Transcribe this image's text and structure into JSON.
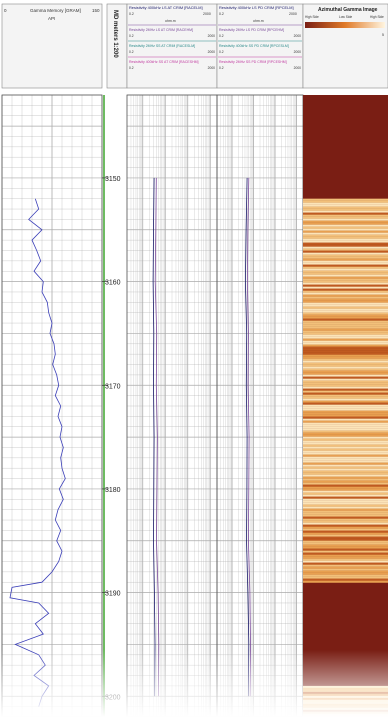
{
  "chart_data": {
    "type": "line",
    "title": "",
    "depth_track": {
      "label": "MD meters 1:200",
      "ticks": [
        3150,
        3160,
        3170,
        3180,
        3190,
        3200
      ],
      "ylim": [
        3142,
        3202
      ]
    },
    "tracks": [
      {
        "id": "gr",
        "header": "Gamma Memory [GRAM]",
        "unit": "API",
        "range": [
          "0",
          "150"
        ],
        "xlim": [
          0,
          150
        ],
        "series": [
          {
            "name": "Gamma Memory",
            "color": "#3b3fb8",
            "points": [
              [
                3152,
                50
              ],
              [
                3153,
                55
              ],
              [
                3154,
                40
              ],
              [
                3155,
                60
              ],
              [
                3156,
                45
              ],
              [
                3157,
                52
              ],
              [
                3158,
                58
              ],
              [
                3159,
                48
              ],
              [
                3160,
                62
              ],
              [
                3161,
                60
              ],
              [
                3162,
                68
              ],
              [
                3163,
                70
              ],
              [
                3164,
                75
              ],
              [
                3165,
                72
              ],
              [
                3166,
                78
              ],
              [
                3167,
                80
              ],
              [
                3168,
                76
              ],
              [
                3169,
                82
              ],
              [
                3170,
                85
              ],
              [
                3171,
                80
              ],
              [
                3172,
                88
              ],
              [
                3173,
                84
              ],
              [
                3174,
                90
              ],
              [
                3175,
                87
              ],
              [
                3176,
                92
              ],
              [
                3177,
                88
              ],
              [
                3178,
                90
              ],
              [
                3179,
                95
              ],
              [
                3180,
                86
              ],
              [
                3181,
                92
              ],
              [
                3182,
                84
              ],
              [
                3183,
                80
              ],
              [
                3184,
                88
              ],
              [
                3185,
                82
              ],
              [
                3186,
                90
              ],
              [
                3187,
                85
              ],
              [
                3188,
                75
              ],
              [
                3189,
                60
              ],
              [
                3189.5,
                15
              ],
              [
                3190.5,
                12
              ],
              [
                3191,
                55
              ],
              [
                3192,
                70
              ],
              [
                3193,
                50
              ],
              [
                3194,
                62
              ],
              [
                3195,
                20
              ],
              [
                3196,
                55
              ],
              [
                3197,
                65
              ],
              [
                3198,
                48
              ],
              [
                3199,
                70
              ],
              [
                3200,
                60
              ],
              [
                3201,
                55
              ]
            ]
          }
        ]
      },
      {
        "id": "att",
        "header": "Resistivity 400kHz LS AT CRIM [RACELM]",
        "unit": "ohm.m",
        "range": [
          "0.2",
          "2000"
        ],
        "xlim": [
          0.2,
          2000
        ],
        "log_scale": true,
        "subheaders": [
          {
            "label": "Resistivity 2MHz LS AT CRIM [RACEHM]",
            "range": [
              "0.2",
              "2000"
            ],
            "color": "#7a4a9a"
          },
          {
            "label": "Resistivity 2MHz SS AT CRIM [RACESLM]",
            "range": [
              "0.2",
              "2000"
            ],
            "color": "#2a8a8a"
          },
          {
            "label": "Resistivity 400kHz SS AT CRIM [RACESHM]",
            "range": [
              "0.2",
              "2000"
            ],
            "color": "#c03aa0"
          }
        ],
        "series": [
          {
            "name": "RACELM",
            "color": "#1a1a6a",
            "points": [
              [
                3150,
                3.2
              ],
              [
                3155,
                3.0
              ],
              [
                3160,
                2.9
              ],
              [
                3165,
                3.1
              ],
              [
                3170,
                3.0
              ],
              [
                3175,
                3.2
              ],
              [
                3180,
                3.1
              ],
              [
                3185,
                3.0
              ],
              [
                3190,
                3.3
              ],
              [
                3195,
                3.5
              ],
              [
                3200,
                3.4
              ]
            ]
          },
          {
            "name": "RACEHM",
            "color": "#7a4a9a",
            "points": [
              [
                3150,
                4.0
              ],
              [
                3155,
                3.8
              ],
              [
                3160,
                3.6
              ],
              [
                3165,
                4.2
              ],
              [
                3170,
                4.0
              ],
              [
                3175,
                4.5
              ],
              [
                3180,
                4.3
              ],
              [
                3185,
                4.1
              ],
              [
                3190,
                4.8
              ],
              [
                3195,
                5.2
              ],
              [
                3200,
                5.0
              ]
            ]
          }
        ]
      },
      {
        "id": "pd",
        "header": "Resistivity 400kHz LS PD CRIM [RPCELM]",
        "unit": "ohm.m",
        "range": [
          "0.2",
          "2000"
        ],
        "xlim": [
          0.2,
          2000
        ],
        "log_scale": true,
        "subheaders": [
          {
            "label": "Resistivity 2MHz LS PD CRIM [RPCEHM]",
            "range": [
              "0.2",
              "2000"
            ],
            "color": "#7a4a9a"
          },
          {
            "label": "Resistivity 400kHz SS PD CRIM [RPCESLM]",
            "range": [
              "0.2",
              "2000"
            ],
            "color": "#2a8a8a"
          },
          {
            "label": "Resistivity 2MHz SS PD CRIM [RPCESHM]",
            "range": [
              "0.2",
              "2000"
            ],
            "color": "#c03aa0"
          }
        ],
        "series": [
          {
            "name": "RPCELM",
            "color": "#1a1a6a",
            "points": [
              [
                3150,
                5.0
              ],
              [
                3155,
                4.5
              ],
              [
                3160,
                4.2
              ],
              [
                3165,
                4.8
              ],
              [
                3170,
                4.6
              ],
              [
                3175,
                5.0
              ],
              [
                3180,
                4.9
              ],
              [
                3185,
                4.7
              ],
              [
                3190,
                5.5
              ],
              [
                3195,
                6.0
              ],
              [
                3200,
                5.8
              ]
            ]
          },
          {
            "name": "RPCEHM",
            "color": "#7a4a9a",
            "points": [
              [
                3150,
                6.0
              ],
              [
                3155,
                5.5
              ],
              [
                3160,
                5.2
              ],
              [
                3165,
                5.8
              ],
              [
                3170,
                5.6
              ],
              [
                3175,
                6.2
              ],
              [
                3180,
                6.0
              ],
              [
                3185,
                5.8
              ],
              [
                3190,
                6.8
              ],
              [
                3195,
                7.2
              ],
              [
                3200,
                7.0
              ]
            ]
          }
        ]
      },
      {
        "id": "img",
        "header": "Azimuthal Gamma Image",
        "legend_labels": [
          "High Side",
          "Low Side",
          "High Side"
        ],
        "scale_max": "5"
      }
    ]
  },
  "colors": {
    "grid": "#aaaaaa",
    "header_bg": "#f4f4f4",
    "gamma": "#3b3fb8",
    "image_dark": "#7a1e14",
    "image_light": "#f6d49a"
  }
}
